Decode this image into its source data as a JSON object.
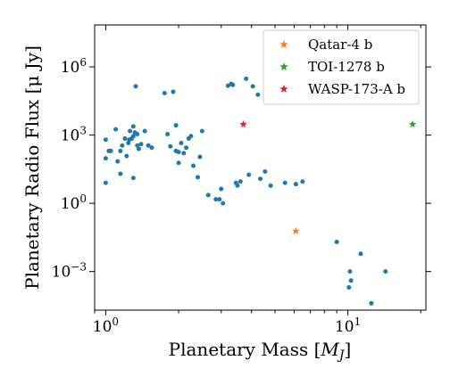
{
  "chart_data": {
    "type": "scatter",
    "xlabel": "Planetary Mass [",
    "xlabel_unit": "M",
    "xlabel_sub": "J",
    "xlabel_end": "]",
    "ylabel": "Planetary Radio Flux [μ Jy]",
    "x_scale": "log",
    "y_scale": "log",
    "xlim": [
      0.9,
      21
    ],
    "ylim": [
      2e-05,
      70000000
    ],
    "x_ticks": [
      {
        "value": 1,
        "label": "10",
        "exp": "0"
      },
      {
        "value": 10,
        "label": "10",
        "exp": "1"
      }
    ],
    "y_ticks": [
      {
        "value": 0.001,
        "label": "10",
        "exp": "−3"
      },
      {
        "value": 1,
        "label": "10",
        "exp": "0"
      },
      {
        "value": 1000,
        "label": "10",
        "exp": "3"
      },
      {
        "value": 1000000,
        "label": "10",
        "exp": "6"
      }
    ],
    "grid": false,
    "legend_position": "top-right",
    "series": [
      {
        "marker": "circle",
        "color": "#1f77b4",
        "points": [
          [
            1.0,
            630
          ],
          [
            1.0,
            95
          ],
          [
            1.0,
            8
          ],
          [
            1.03,
            200
          ],
          [
            1.05,
            200
          ],
          [
            1.1,
            1800
          ],
          [
            1.12,
            70
          ],
          [
            1.15,
            200
          ],
          [
            1.15,
            20
          ],
          [
            1.17,
            350
          ],
          [
            1.2,
            700
          ],
          [
            1.22,
            120
          ],
          [
            1.24,
            450
          ],
          [
            1.25,
            630
          ],
          [
            1.26,
            1500
          ],
          [
            1.28,
            700
          ],
          [
            1.3,
            900
          ],
          [
            1.3,
            13
          ],
          [
            1.3,
            2400
          ],
          [
            1.32,
            1300
          ],
          [
            1.33,
            140000
          ],
          [
            1.35,
            1100
          ],
          [
            1.35,
            350
          ],
          [
            1.37,
            250
          ],
          [
            1.4,
            400
          ],
          [
            1.45,
            1500
          ],
          [
            1.5,
            350
          ],
          [
            1.55,
            280
          ],
          [
            1.75,
            70000
          ],
          [
            1.8,
            1100
          ],
          [
            1.85,
            320
          ],
          [
            1.9,
            80000
          ],
          [
            1.95,
            2700
          ],
          [
            1.95,
            200
          ],
          [
            2.0,
            60
          ],
          [
            2.0,
            180
          ],
          [
            2.05,
            450
          ],
          [
            2.1,
            160
          ],
          [
            2.15,
            280
          ],
          [
            2.2,
            700
          ],
          [
            2.25,
            900
          ],
          [
            2.3,
            45
          ],
          [
            2.4,
            14
          ],
          [
            2.45,
            110
          ],
          [
            2.5,
            1500
          ],
          [
            2.65,
            2.3
          ],
          [
            2.85,
            1.5
          ],
          [
            2.95,
            1.5
          ],
          [
            3.0,
            4.3
          ],
          [
            3.05,
            1
          ],
          [
            3.2,
            150000
          ],
          [
            3.3,
            180000
          ],
          [
            3.35,
            160000
          ],
          [
            3.45,
            8
          ],
          [
            3.5,
            6
          ],
          [
            3.6,
            9
          ],
          [
            3.8,
            300000
          ],
          [
            3.9,
            18
          ],
          [
            4.05,
            140000
          ],
          [
            4.25,
            60000
          ],
          [
            4.35,
            12
          ],
          [
            4.55,
            25
          ],
          [
            4.8,
            6
          ],
          [
            5.5,
            8
          ],
          [
            6.1,
            7
          ],
          [
            6.5,
            9
          ],
          [
            10.3,
            0.0004
          ],
          [
            10.1,
            0.0002
          ],
          [
            12.5,
            4e-05
          ],
          [
            9.0,
            0.02
          ],
          [
            10.2,
            0.001
          ],
          [
            11.3,
            0.006
          ],
          [
            14.3,
            0.001
          ]
        ]
      },
      {
        "name": "Qatar-4 b",
        "marker": "star",
        "color": "#ff7f0e",
        "points": [
          [
            6.1,
            0.06
          ]
        ]
      },
      {
        "name": "TOI-1278 b",
        "marker": "star",
        "color": "#2ca02c",
        "points": [
          [
            18.5,
            3000
          ]
        ]
      },
      {
        "name": "WASP-173-A b",
        "marker": "star",
        "color": "#d62728",
        "points": [
          [
            3.7,
            3000
          ]
        ]
      }
    ]
  }
}
